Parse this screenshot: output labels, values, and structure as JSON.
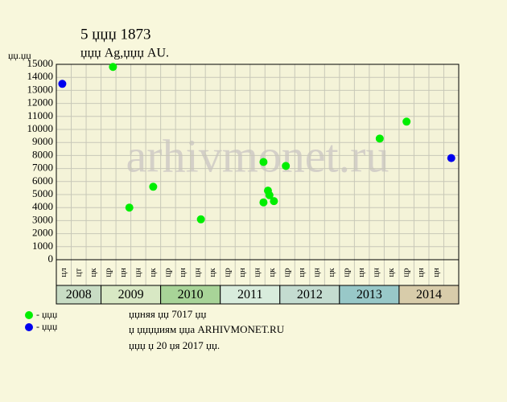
{
  "chart_data": {
    "type": "scatter",
    "title": "5 џџџ 1873",
    "subtitle": "џџџ Ag,џџџ AU.",
    "y_label": "џџ.џџ",
    "watermark": "arhivmonet.ru",
    "categories": [
      "цл",
      "цт",
      "цк",
      "цр",
      "цн",
      "цн",
      "цк",
      "цр",
      "цн",
      "цн",
      "цк",
      "цр",
      "цн",
      "цн",
      "цк",
      "цр",
      "цн",
      "цн",
      "цк",
      "цр",
      "цн",
      "цн",
      "цк",
      "цр",
      "цн",
      "цн",
      null
    ],
    "years": [
      {
        "label": "2008",
        "span": 3,
        "color": "#c8dcc4"
      },
      {
        "label": "2009",
        "span": 4,
        "color": "#d8e8c4"
      },
      {
        "label": "2010",
        "span": 4,
        "color": "#a8d498"
      },
      {
        "label": "2011",
        "span": 4,
        "color": "#d8ecdc"
      },
      {
        "label": "2012",
        "span": 4,
        "color": "#c4dcd0"
      },
      {
        "label": "2013",
        "span": 4,
        "color": "#98c8c8"
      },
      {
        "label": "2014",
        "span": 4,
        "color": "#d8ccaa"
      }
    ],
    "series": [
      {
        "name": "- џџџ",
        "color": "#00ee00",
        "x": [
          3.8,
          4.9,
          6.5,
          9.7,
          13.9,
          13.9,
          14.2,
          14.3,
          14.6,
          15.4,
          21.7,
          23.5
        ],
        "values": [
          14800,
          4000,
          5600,
          3100,
          7500,
          4400,
          5300,
          4950,
          4500,
          7200,
          9300,
          10600
        ]
      },
      {
        "name": "- џџџ",
        "color": "#0000ee",
        "x": [
          0.4,
          26.5
        ],
        "values": [
          13500,
          7800
        ]
      }
    ],
    "ylim": [
      0,
      15000
    ],
    "yticks": [
      0,
      1000,
      2000,
      3000,
      4000,
      5000,
      6000,
      7000,
      8000,
      9000,
      10000,
      11000,
      12000,
      13000,
      14000,
      15000
    ],
    "grid": true,
    "notes": [
      "џџняя џџ 7017 џџ",
      "џ џџџџиям џџа ARHIVMONET.RU",
      "џџџ џ 20 џя 2017 џџ."
    ]
  }
}
